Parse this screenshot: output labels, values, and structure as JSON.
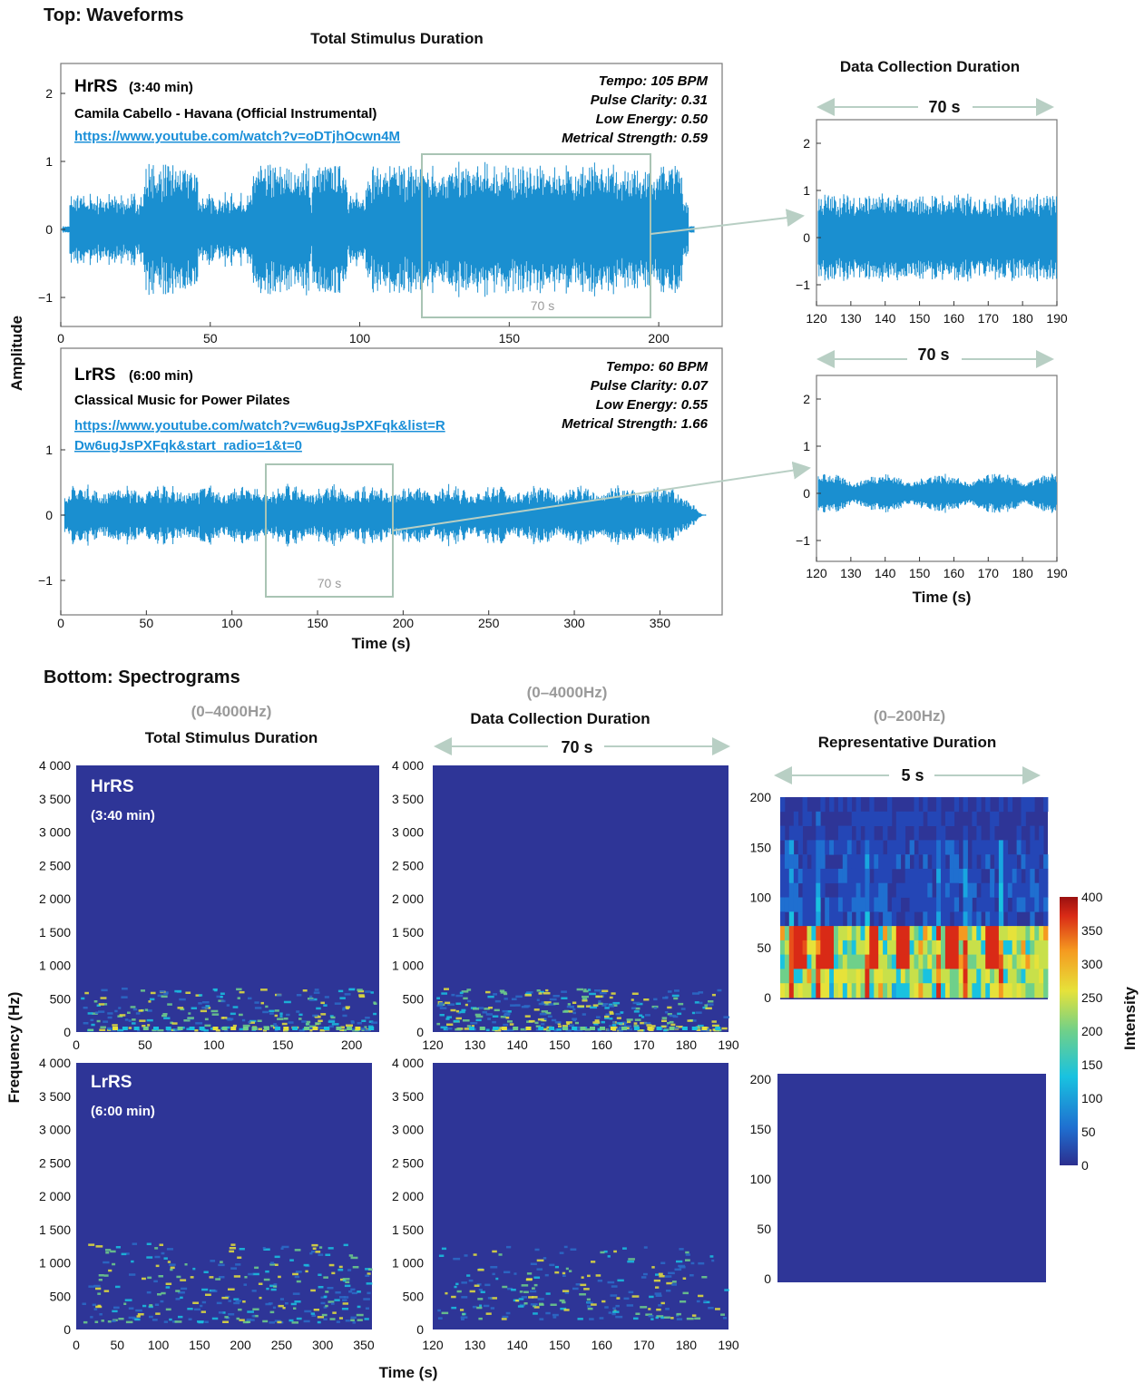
{
  "headings": {
    "top": "Top: Waveforms",
    "bottom": "Bottom: Spectrograms",
    "total_stimulus": "Total Stimulus Duration",
    "data_collection": "Data Collection Duration",
    "representative": "Representative Duration",
    "range_4000_a": "(0–4000Hz)",
    "range_4000_b": "(0–4000Hz)",
    "range_200": "(0–200Hz)"
  },
  "axis_titles": {
    "amplitude": "Amplitude",
    "time_top": "Time (s)",
    "time_right": "Time (s)",
    "frequency": "Frequency (Hz)",
    "time_bottom": "Time (s)",
    "intensity": "Intensity"
  },
  "songs": {
    "hrrs": {
      "label": "HrRS",
      "duration": "(3:40 min)",
      "title": "Camila Cabello - Havana (Official Instrumental)",
      "link_lines": [
        "https://www.youtube.com/watch?v=oDTjhOcwn4M"
      ],
      "stats": [
        "Tempo: 105 BPM",
        "Pulse Clarity: 0.31",
        "Low Energy: 0.50",
        "Metrical Strength: 0.59"
      ],
      "window_label": "70 s",
      "zoom_label": "70 s"
    },
    "lrrs": {
      "label": "LrRS",
      "duration": "(6:00 min)",
      "title": "Classical Music for Power Pilates",
      "link_lines": [
        "https://www.youtube.com/watch?v=w6ugJsPXFqk&list=R",
        "Dw6ugJsPXFqk&start_radio=1&t=0"
      ],
      "stats": [
        "Tempo: 60 BPM",
        "Pulse Clarity: 0.07",
        "Low Energy: 0.55",
        "Metrical Strength: 1.66"
      ],
      "window_label": "70 s",
      "zoom_label": "70 s"
    }
  },
  "spectrogram_arrows": {
    "data_collection": "70 s",
    "representative": "5 s"
  },
  "colors": {
    "waveform": "#1a8fd0",
    "box": "#a9c4b4",
    "arrow": "#b8cfc4",
    "spec_bg": "#2e3597",
    "colorbar": [
      "#2c2f8f",
      "#1f6fd0",
      "#19c2e0",
      "#6fd08a",
      "#e6e23a",
      "#f59a20",
      "#d92a16",
      "#9a1010"
    ]
  },
  "chart_data": [
    {
      "type": "line",
      "name": "hrrs_waveform_total",
      "xlabel": "",
      "ylabel": "Amplitude",
      "xlim": [
        0,
        220
      ],
      "ylim": [
        -1.5,
        2.5
      ],
      "xticks": [
        0,
        50,
        100,
        150,
        200
      ],
      "yticks": [
        -1,
        0,
        1,
        2
      ],
      "highlight_window_s": [
        117,
        190
      ],
      "amplitude_envelope": 1.0
    },
    {
      "type": "line",
      "name": "hrrs_waveform_window",
      "xlim": [
        120,
        190
      ],
      "ylim": [
        -1.5,
        2.5
      ],
      "xticks": [
        120,
        130,
        140,
        150,
        160,
        170,
        180,
        190
      ],
      "yticks": [
        -1,
        0,
        1,
        2
      ],
      "amplitude_envelope": 0.95
    },
    {
      "type": "line",
      "name": "lrrs_waveform_total",
      "xlabel": "Time (s)",
      "ylabel": "Amplitude",
      "xlim": [
        0,
        380
      ],
      "ylim": [
        -1.5,
        2.5
      ],
      "xticks": [
        0,
        50,
        100,
        150,
        200,
        250,
        300,
        350
      ],
      "yticks": [
        -1,
        0,
        1
      ],
      "highlight_window_s": [
        118,
        191
      ],
      "amplitude_envelope": 0.55
    },
    {
      "type": "line",
      "name": "lrrs_waveform_window",
      "xlabel": "Time (s)",
      "xlim": [
        120,
        190
      ],
      "ylim": [
        -1.5,
        2.5
      ],
      "xticks": [
        120,
        130,
        140,
        150,
        160,
        170,
        180,
        190
      ],
      "yticks": [
        -1,
        0,
        1,
        2
      ],
      "amplitude_envelope": 0.35
    },
    {
      "type": "heatmap",
      "name": "hrrs_spectrogram_total",
      "ylabel": "Frequency (Hz)",
      "xlim": [
        0,
        220
      ],
      "ylim": [
        0,
        4000
      ],
      "xticks": [
        0,
        50,
        100,
        150,
        200
      ],
      "yticks": [
        0,
        500,
        1000,
        1500,
        2000,
        2500,
        3000,
        3500,
        4000
      ],
      "ytick_labels": [
        "0",
        "500",
        "1 000",
        "1 500",
        "2 000",
        "2 500",
        "3 000",
        "3 500",
        "4 000"
      ]
    },
    {
      "type": "heatmap",
      "name": "hrrs_spectrogram_window",
      "xlim": [
        120,
        190
      ],
      "ylim": [
        0,
        4000
      ],
      "xticks": [
        120,
        130,
        140,
        150,
        160,
        170,
        180,
        190
      ],
      "yticks": [
        0,
        500,
        1000,
        1500,
        2000,
        2500,
        3000,
        3500,
        4000
      ],
      "ytick_labels": [
        "0",
        "500",
        "1 000",
        "1 500",
        "2 000",
        "2 500",
        "3 000",
        "3 500",
        "4 000"
      ]
    },
    {
      "type": "heatmap",
      "name": "hrrs_spectrogram_representative",
      "xlim": [
        0,
        5
      ],
      "ylim": [
        0,
        200
      ],
      "yticks": [
        0,
        50,
        100,
        150,
        200
      ],
      "colorbar": {
        "label": "Intensity",
        "range": [
          0,
          400
        ],
        "ticks": [
          0,
          50,
          100,
          150,
          200,
          250,
          300,
          350,
          400
        ]
      }
    },
    {
      "type": "heatmap",
      "name": "lrrs_spectrogram_total",
      "xlabel": "Time (s)",
      "ylabel": "Frequency (Hz)",
      "xlim": [
        0,
        360
      ],
      "ylim": [
        0,
        4000
      ],
      "xticks": [
        0,
        50,
        100,
        150,
        200,
        250,
        300,
        350
      ],
      "yticks": [
        0,
        500,
        1000,
        1500,
        2000,
        2500,
        3000,
        3500,
        4000
      ],
      "ytick_labels": [
        "0",
        "500",
        "1 000",
        "1 500",
        "2 000",
        "2 500",
        "3 000",
        "3 500",
        "4 000"
      ]
    },
    {
      "type": "heatmap",
      "name": "lrrs_spectrogram_window",
      "xlim": [
        120,
        190
      ],
      "ylim": [
        0,
        4000
      ],
      "xticks": [
        120,
        130,
        140,
        150,
        160,
        170,
        180,
        190
      ],
      "yticks": [
        0,
        500,
        1000,
        1500,
        2000,
        2500,
        3000,
        3500,
        4000
      ],
      "ytick_labels": [
        "0",
        "500",
        "1 000",
        "1 500",
        "2 000",
        "2 500",
        "3 000",
        "3 500",
        "4 000"
      ]
    },
    {
      "type": "heatmap",
      "name": "lrrs_spectrogram_representative",
      "xlim": [
        0,
        5
      ],
      "ylim": [
        0,
        200
      ],
      "yticks": [
        0,
        50,
        100,
        150,
        200
      ]
    }
  ]
}
